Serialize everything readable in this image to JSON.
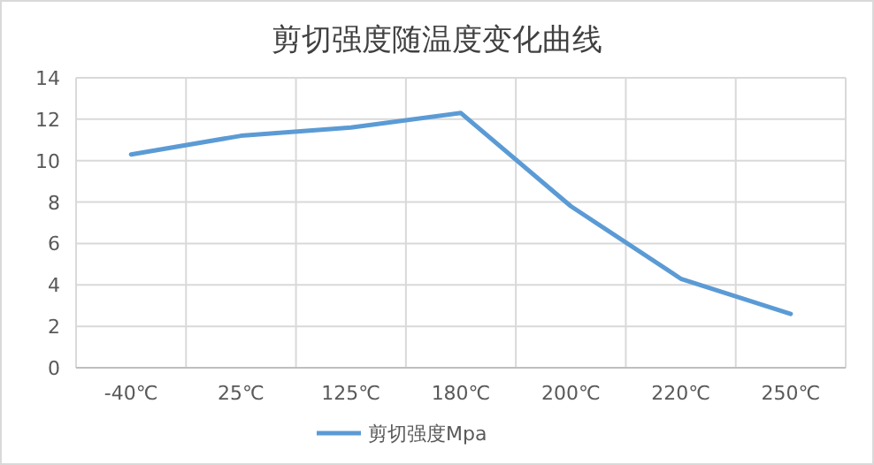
{
  "chart_data": {
    "type": "line",
    "title": "剪切强度随温度变化曲线",
    "categories": [
      "-40℃",
      "25℃",
      "125℃",
      "180℃",
      "200℃",
      "220℃",
      "250℃"
    ],
    "series": [
      {
        "name": "剪切强度Mpa",
        "color": "#5b9bd5",
        "values": [
          10.3,
          11.2,
          11.6,
          12.3,
          7.8,
          4.3,
          2.6
        ]
      }
    ],
    "ylim": [
      0,
      14
    ],
    "yticks": [
      0,
      2,
      4,
      6,
      8,
      10,
      12,
      14
    ],
    "grid": true,
    "legend": "bottom",
    "marker": "none",
    "line_style": "solid"
  }
}
